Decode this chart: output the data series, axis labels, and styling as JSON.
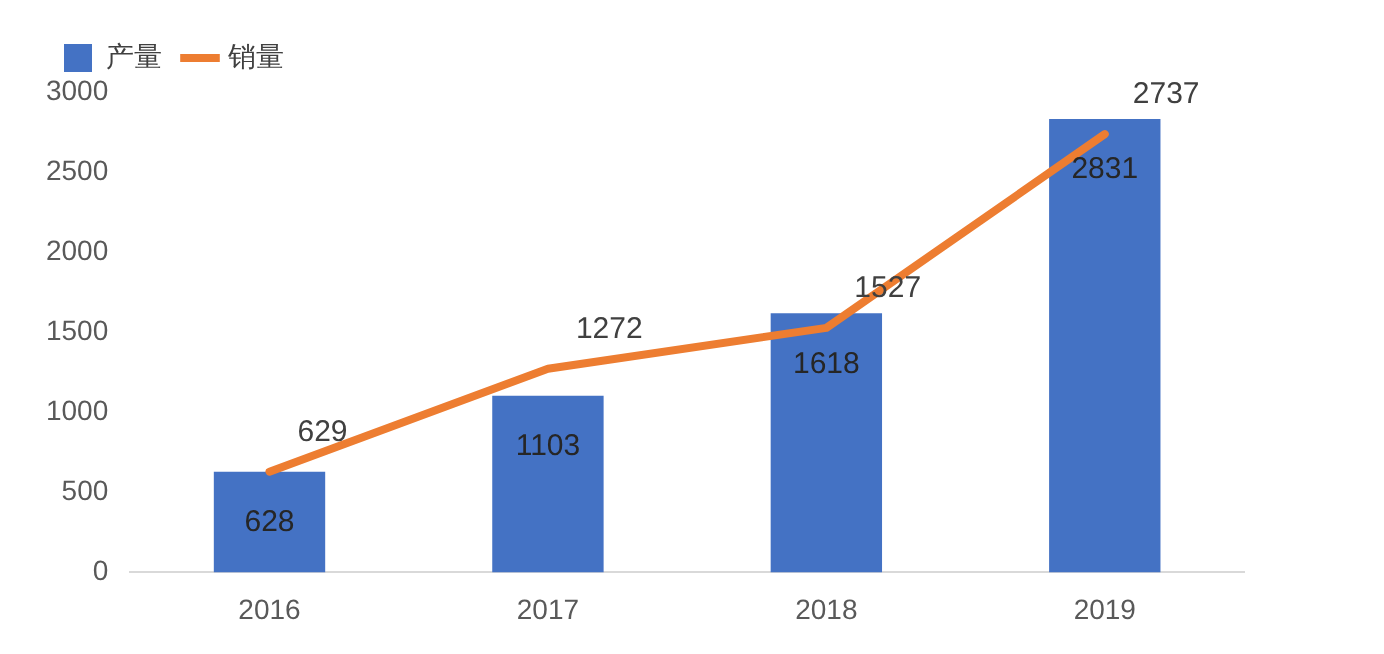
{
  "chart_data": {
    "type": "bar",
    "categories": [
      "2016",
      "2017",
      "2018",
      "2019"
    ],
    "series": [
      {
        "name": "产量",
        "color": "#4472c4",
        "values": [
          628,
          1103,
          1618,
          2831
        ]
      },
      {
        "name": "销量",
        "type": "line",
        "color": "#ed7d31",
        "values": [
          629,
          1272,
          1527,
          2737
        ]
      }
    ],
    "ylim": [
      0,
      3000
    ],
    "yticks": [
      0,
      500,
      1000,
      1500,
      2000,
      2500,
      3000
    ],
    "grid": false,
    "legend": "top left",
    "data_labels": true,
    "marker": "none"
  }
}
